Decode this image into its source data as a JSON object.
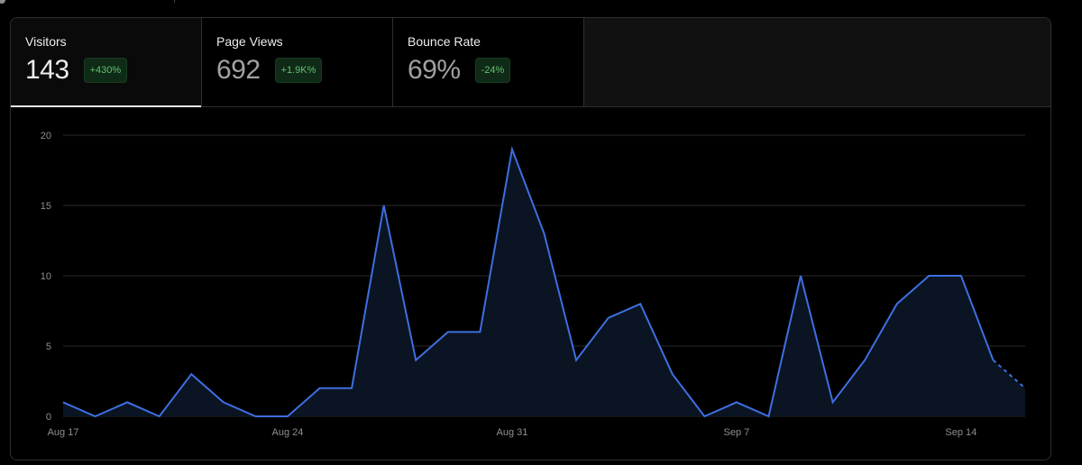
{
  "stats": [
    {
      "label": "Visitors",
      "value": "143",
      "delta": "+430%"
    },
    {
      "label": "Page Views",
      "value": "692",
      "delta": "+1.9K%"
    },
    {
      "label": "Bounce Rate",
      "value": "69%",
      "delta": "-24%"
    }
  ],
  "colors": {
    "line": "#3e6fe0",
    "area": "#0a1422",
    "badge_bg": "#0f2a16",
    "badge_text": "#62c073",
    "background": "#000000"
  },
  "chart_data": {
    "type": "area",
    "title": "",
    "xlabel": "",
    "ylabel": "",
    "x": [
      "Aug 17",
      "Aug 18",
      "Aug 19",
      "Aug 20",
      "Aug 21",
      "Aug 22",
      "Aug 23",
      "Aug 24",
      "Aug 25",
      "Aug 26",
      "Aug 27",
      "Aug 28",
      "Aug 29",
      "Aug 30",
      "Aug 31",
      "Sep 1",
      "Sep 2",
      "Sep 3",
      "Sep 4",
      "Sep 5",
      "Sep 6",
      "Sep 7",
      "Sep 8",
      "Sep 9",
      "Sep 10",
      "Sep 11",
      "Sep 12",
      "Sep 13",
      "Sep 14",
      "Sep 15",
      "Sep 16"
    ],
    "series": [
      {
        "values": [
          1,
          0,
          1,
          0,
          3,
          1,
          0,
          0,
          2,
          2,
          15,
          4,
          6,
          6,
          19,
          13,
          4,
          7,
          8,
          3,
          0,
          1,
          0,
          10,
          1,
          4,
          8,
          10,
          10,
          4,
          2
        ]
      }
    ],
    "partial_from_index": 29,
    "ylim": [
      0,
      20
    ],
    "yticks": [
      0,
      5,
      10,
      15,
      20
    ],
    "xticks": [
      "Aug 17",
      "Aug 24",
      "Aug 31",
      "Sep 7",
      "Sep 14"
    ],
    "grid": true
  }
}
